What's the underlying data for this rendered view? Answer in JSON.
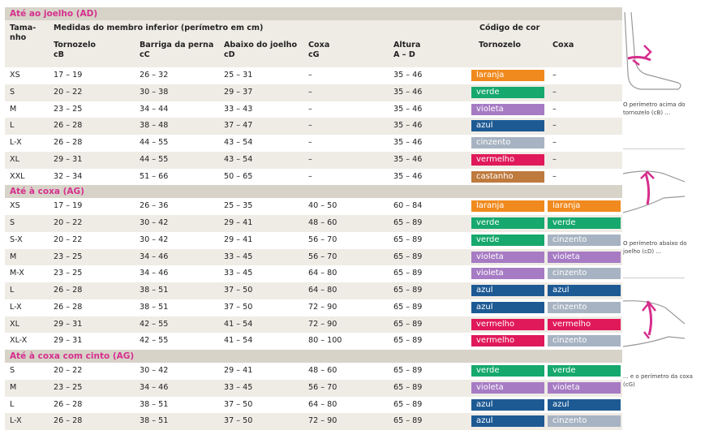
{
  "colors": {
    "laranja": "#f08a1e",
    "verde": "#16a86d",
    "violeta": "#a67bc4",
    "azul": "#1d5a94",
    "cinzento": "#a7b3c2",
    "vermelho": "#e0195a",
    "castanho": "#bf7a3e",
    "pink": "#d62f8d"
  },
  "header": {
    "tamanho": "Tama-\nnho",
    "medidas": "Medidas do membro inferior (perímetro em cm)",
    "codigo": "Código de cor",
    "col_tornozelo": "Tornozelo\ncB",
    "col_barriga": "Barriga da perna\ncC",
    "col_abaixo": "Abaixo do joelho\ncD",
    "col_coxa": "Coxa\ncG",
    "col_altura": "Altura\nA – D",
    "col_cor_tornozelo": "Tornozelo",
    "col_cor_coxa": "Coxa"
  },
  "sections": [
    {
      "title": "Até ao joelho (AD)",
      "rows": [
        {
          "size": "XS",
          "cb": "17 – 19",
          "cc": "26 – 32",
          "cd": "25 – 31",
          "cg": "–",
          "h": "35 – 46",
          "t": "laranja",
          "c": "–"
        },
        {
          "size": "S",
          "cb": "20 – 22",
          "cc": "30 – 38",
          "cd": "29 – 37",
          "cg": "–",
          "h": "35 – 46",
          "t": "verde",
          "c": "–"
        },
        {
          "size": "M",
          "cb": "23 – 25",
          "cc": "34 – 44",
          "cd": "33 – 43",
          "cg": "–",
          "h": "35 – 46",
          "t": "violeta",
          "c": "–"
        },
        {
          "size": "L",
          "cb": "26 – 28",
          "cc": "38 – 48",
          "cd": "37 – 47",
          "cg": "–",
          "h": "35 – 46",
          "t": "azul",
          "c": "–"
        },
        {
          "size": "L-X",
          "cb": "26 – 28",
          "cc": "44 – 55",
          "cd": "43 – 54",
          "cg": "–",
          "h": "35 – 46",
          "t": "cinzento",
          "c": "–"
        },
        {
          "size": "XL",
          "cb": "29 – 31",
          "cc": "44 – 55",
          "cd": "43 – 54",
          "cg": "–",
          "h": "35 – 46",
          "t": "vermelho",
          "c": "–"
        },
        {
          "size": "XXL",
          "cb": "32 – 34",
          "cc": "51 – 66",
          "cd": "50 – 65",
          "cg": "–",
          "h": "35 – 46",
          "t": "castanho",
          "c": "–"
        }
      ]
    },
    {
      "title": "Até à coxa (AG)",
      "rows": [
        {
          "size": "XS",
          "cb": "17 – 19",
          "cc": "26 – 36",
          "cd": "25 – 35",
          "cg": "40 – 50",
          "h": "60 – 84",
          "t": "laranja",
          "c": "laranja"
        },
        {
          "size": "S",
          "cb": "20 – 22",
          "cc": "30 – 42",
          "cd": "29 – 41",
          "cg": "48 – 60",
          "h": "65 – 89",
          "t": "verde",
          "c": "verde"
        },
        {
          "size": "S-X",
          "cb": "20 – 22",
          "cc": "30 – 42",
          "cd": "29 – 41",
          "cg": "56 – 70",
          "h": "65 – 89",
          "t": "verde",
          "c": "cinzento"
        },
        {
          "size": "M",
          "cb": "23 – 25",
          "cc": "34 – 46",
          "cd": "33 – 45",
          "cg": "56 – 70",
          "h": "65 – 89",
          "t": "violeta",
          "c": "violeta"
        },
        {
          "size": "M-X",
          "cb": "23 – 25",
          "cc": "34 – 46",
          "cd": "33 – 45",
          "cg": "64 – 80",
          "h": "65 – 89",
          "t": "violeta",
          "c": "cinzento"
        },
        {
          "size": "L",
          "cb": "26 – 28",
          "cc": "38 – 51",
          "cd": "37 – 50",
          "cg": "64 – 80",
          "h": "65 – 89",
          "t": "azul",
          "c": "azul"
        },
        {
          "size": "L-X",
          "cb": "26 – 28",
          "cc": "38 – 51",
          "cd": "37 – 50",
          "cg": "72 – 90",
          "h": "65 – 89",
          "t": "azul",
          "c": "cinzento"
        },
        {
          "size": "XL",
          "cb": "29 – 31",
          "cc": "42 – 55",
          "cd": "41 – 54",
          "cg": "72 – 90",
          "h": "65 – 89",
          "t": "vermelho",
          "c": "vermelho"
        },
        {
          "size": "XL-X",
          "cb": "29 – 31",
          "cc": "42 – 55",
          "cd": "41 – 54",
          "cg": "80 – 100",
          "h": "65 – 89",
          "t": "vermelho",
          "c": "cinzento"
        }
      ]
    },
    {
      "title": "Até à coxa com cinto (AG)",
      "rows": [
        {
          "size": "S",
          "cb": "20 – 22",
          "cc": "30 – 42",
          "cd": "29 – 41",
          "cg": "48 – 60",
          "h": "65 – 89",
          "t": "verde",
          "c": "verde"
        },
        {
          "size": "M",
          "cb": "23 – 25",
          "cc": "34 – 46",
          "cd": "33 – 45",
          "cg": "56 – 70",
          "h": "65 – 89",
          "t": "violeta",
          "c": "violeta"
        },
        {
          "size": "L",
          "cb": "26 – 28",
          "cc": "38 – 51",
          "cd": "37 – 50",
          "cg": "64 – 80",
          "h": "65 – 89",
          "t": "azul",
          "c": "azul"
        },
        {
          "size": "L-X",
          "cb": "26 – 28",
          "cc": "38 – 51",
          "cd": "37 – 50",
          "cg": "72 – 90",
          "h": "65 – 89",
          "t": "azul",
          "c": "cinzento"
        }
      ]
    }
  ],
  "illustrations": [
    {
      "icon": "ankle-measure-icon",
      "caption": "O perímetro acima do tornozelo (cB) ..."
    },
    {
      "icon": "knee-measure-icon",
      "caption": "O perímetro abaixo do joelho (cD) ..."
    },
    {
      "icon": "thigh-measure-icon",
      "caption": "... e o perímetro da coxa (cG)"
    }
  ]
}
